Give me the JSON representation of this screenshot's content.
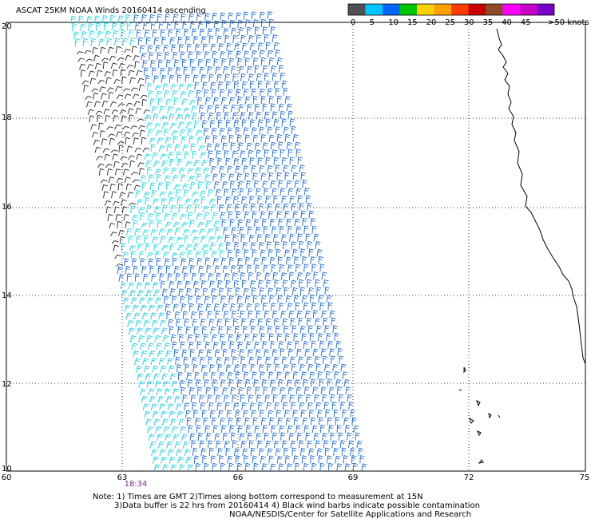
{
  "title": "ASCAT 25KM NOAA Winds 20160414 ascending",
  "legend": {
    "colors": [
      "#505050",
      "#00c8ff",
      "#0064ff",
      "#00c800",
      "#ffd200",
      "#ffa000",
      "#ff3c00",
      "#c80000",
      "#8c4a28",
      "#ff00ff",
      "#c800c8",
      "#7800c8"
    ],
    "labels": [
      "0",
      "5",
      "10",
      "15",
      "20",
      "25",
      "30",
      "35",
      "40",
      "45",
      ">50 knots"
    ]
  },
  "map": {
    "lon_labels": [
      "60",
      "63",
      "66",
      "69",
      "72",
      "75"
    ],
    "lat_labels": [
      "20",
      "18",
      "16",
      "14",
      "12",
      "10"
    ],
    "time_label": "18:34"
  },
  "notes": {
    "line1": "Note: 1) Times are GMT 2)Times along bottom correspond to measurement at 15N",
    "line2": "3)Data buffer is 22 hrs from 20160414 4) Black wind barbs indicate possible contamination",
    "line3": "NOAA/NESDIS/Center for Satellite Applications and Research"
  }
}
